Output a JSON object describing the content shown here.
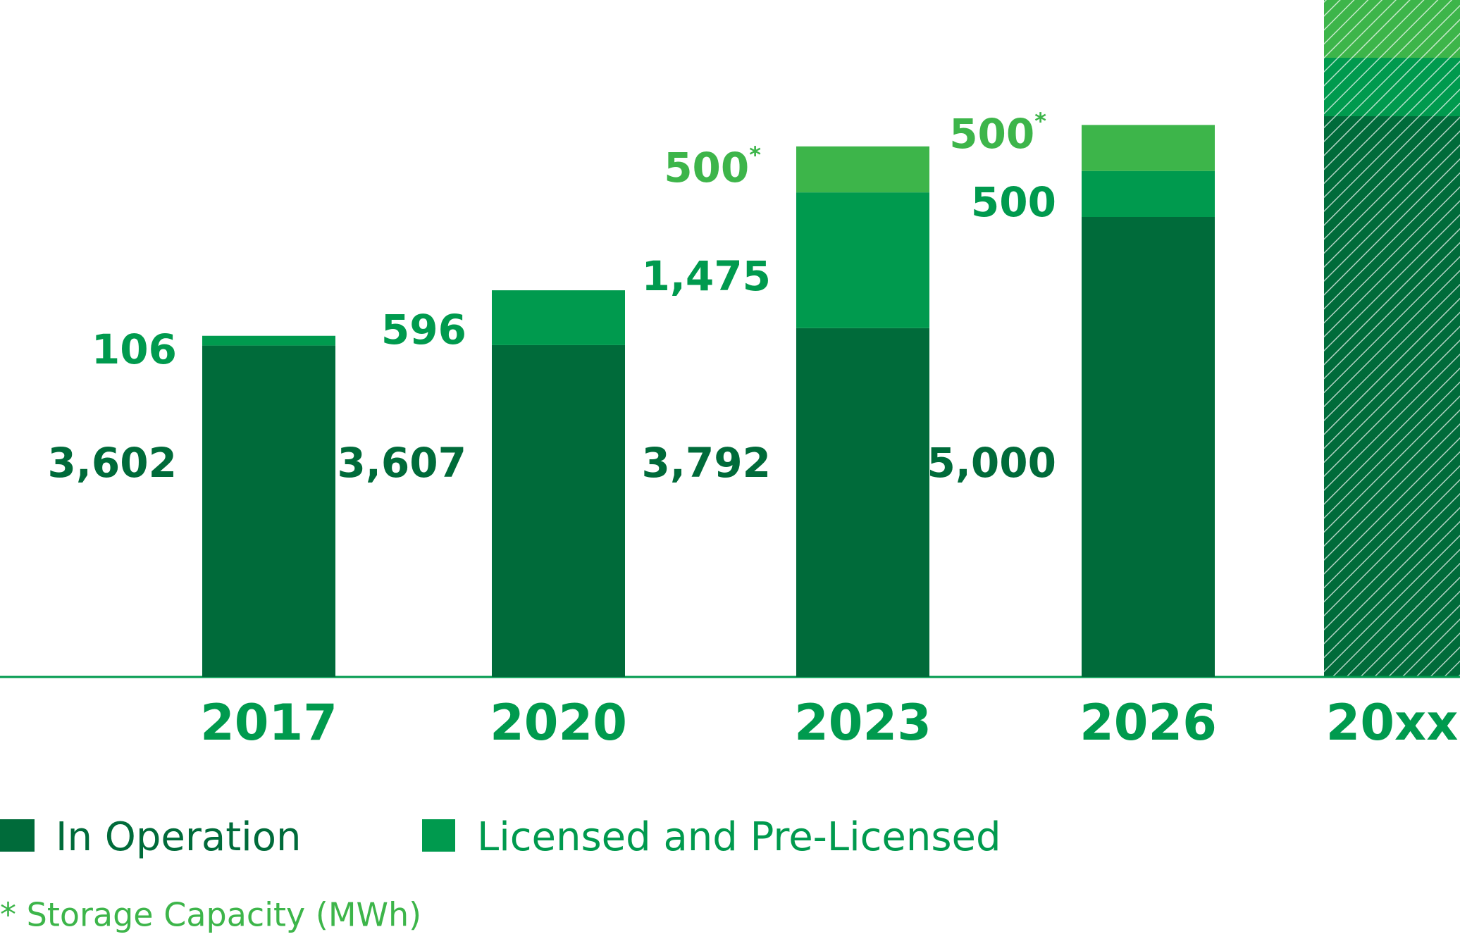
{
  "chart_data": {
    "type": "stacked_bar",
    "categories": [
      "2017",
      "2020",
      "2023",
      "2026",
      "20xx"
    ],
    "series": [
      {
        "name": "In Operation",
        "color": "#006b3a",
        "values": [
          3602,
          3607,
          3792,
          5000,
          null
        ]
      },
      {
        "name": "Licensed and Pre-Licensed",
        "color": "#009a4e",
        "values": [
          106,
          596,
          1475,
          500,
          null
        ]
      },
      {
        "color": "#3db54a",
        "values": [
          null,
          null,
          500,
          500,
          null
        ],
        "value_marker": "*"
      }
    ],
    "value_labels": [
      [
        "3,602",
        "3,607",
        "3,792",
        "5,000",
        null
      ],
      [
        "106",
        "596",
        "1,475",
        "500",
        null
      ],
      [
        null,
        null,
        "500",
        "500",
        null
      ]
    ],
    "footnote": "* Storage Capacity (MWh)"
  }
}
